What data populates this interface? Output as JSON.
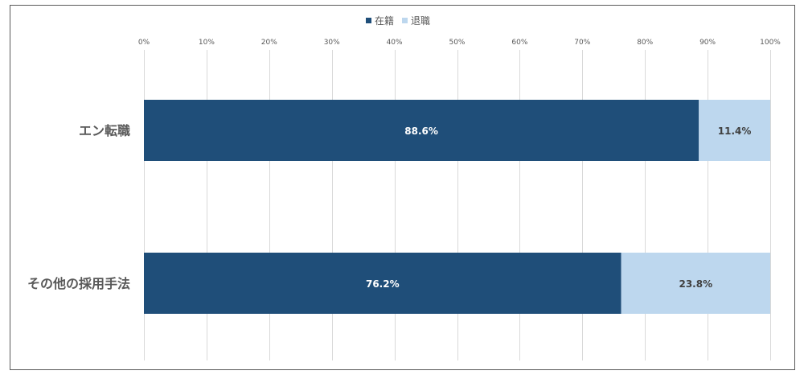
{
  "chart_data": {
    "type": "bar",
    "orientation": "horizontal",
    "stacked": "percent",
    "categories": [
      "エン転職",
      "その他の採用手法"
    ],
    "series": [
      {
        "name": "在籍",
        "values": [
          88.6,
          76.2
        ],
        "color": "#1f4e79",
        "label_color": "#ffffff"
      },
      {
        "name": "退職",
        "values": [
          11.4,
          23.8
        ],
        "color": "#bdd7ee",
        "label_color": "#404040"
      }
    ],
    "data_labels": [
      [
        "88.6%",
        "76.2%"
      ],
      [
        "11.4%",
        "23.8%"
      ]
    ],
    "x_ticks": [
      0,
      10,
      20,
      30,
      40,
      50,
      60,
      70,
      80,
      90,
      100
    ],
    "x_tick_labels": [
      "0%",
      "10%",
      "20%",
      "30%",
      "40%",
      "50%",
      "60%",
      "70%",
      "80%",
      "90%",
      "100%"
    ],
    "xlim": [
      0,
      100
    ],
    "x_axis_position": "top",
    "grid": true,
    "legend_position": "top",
    "gridline_color": "#d9d9d9",
    "border_color": "#595959",
    "category_label_color": "#595959",
    "tick_label_color": "#595959"
  }
}
